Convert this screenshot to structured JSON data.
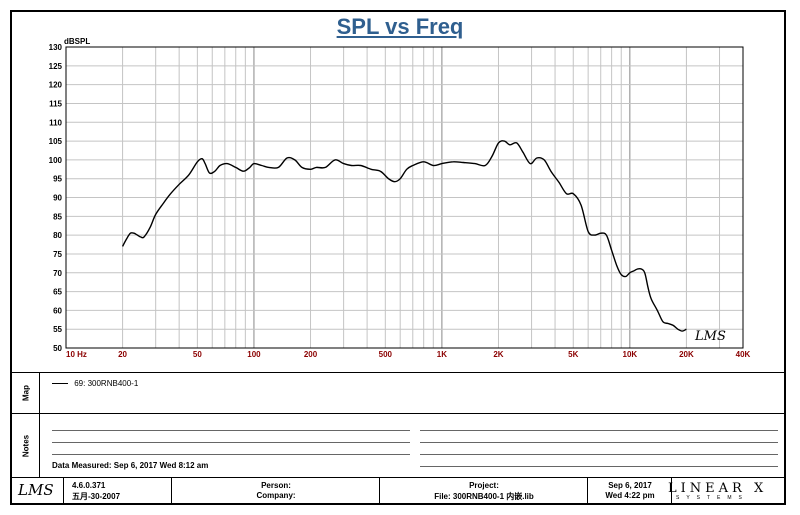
{
  "title": "SPL vs Freq",
  "chart_data": {
    "type": "line",
    "title": "SPL vs Freq",
    "ylabel": "dBSPL",
    "xlabel": "",
    "x_scale": "log",
    "xlim": [
      10,
      40000
    ],
    "ylim": [
      50,
      130
    ],
    "grid": true,
    "y_ticks": [
      "50",
      "55",
      "60",
      "65",
      "70",
      "75",
      "80",
      "85",
      "90",
      "95",
      "100",
      "105",
      "110",
      "115",
      "120",
      "125",
      "130"
    ],
    "x_ticks": [
      {
        "value": 10,
        "label": "10  Hz"
      },
      {
        "value": 20,
        "label": "20"
      },
      {
        "value": 50,
        "label": "50"
      },
      {
        "value": 100,
        "label": "100"
      },
      {
        "value": 200,
        "label": "200"
      },
      {
        "value": 500,
        "label": "500"
      },
      {
        "value": 1000,
        "label": "1K"
      },
      {
        "value": 2000,
        "label": "2K"
      },
      {
        "value": 5000,
        "label": "5K"
      },
      {
        "value": 10000,
        "label": "10K"
      },
      {
        "value": 20000,
        "label": "20K"
      },
      {
        "value": 40000,
        "label": "40K"
      }
    ],
    "series": [
      {
        "name": "69: 300RNB400-1",
        "x": [
          20,
          21,
          22,
          23,
          24,
          25,
          26,
          28,
          30,
          33,
          36,
          40,
          45,
          50,
          53,
          55,
          58,
          62,
          66,
          72,
          80,
          88,
          95,
          100,
          110,
          120,
          135,
          150,
          165,
          180,
          200,
          215,
          240,
          270,
          300,
          330,
          370,
          420,
          470,
          520,
          560,
          600,
          650,
          700,
          800,
          900,
          1000,
          1150,
          1300,
          1500,
          1700,
          1850,
          2000,
          2150,
          2300,
          2500,
          2700,
          2950,
          3200,
          3500,
          3800,
          4200,
          4600,
          5000,
          5500,
          6000,
          6500,
          7000,
          7500,
          8000,
          8500,
          9000,
          9500,
          10000,
          10500,
          11000,
          11500,
          12000,
          12500,
          13000,
          14000,
          15000,
          16000,
          17000,
          18000,
          19000,
          20000
        ],
        "y": [
          77,
          79,
          80.5,
          80.5,
          80,
          79.5,
          79.5,
          82,
          85.5,
          88.5,
          91,
          93.5,
          96,
          99.5,
          100.3,
          99,
          96.5,
          97,
          98.5,
          99,
          98,
          97,
          98,
          99,
          98.5,
          98,
          98,
          100.5,
          100,
          98,
          97.5,
          98,
          98,
          100,
          99,
          98.5,
          98.5,
          97.5,
          97,
          95,
          94.2,
          95,
          97.5,
          98.5,
          99.5,
          98.5,
          99,
          99.5,
          99.3,
          99,
          98.5,
          101,
          104.5,
          105,
          104,
          104.5,
          102,
          99,
          100.5,
          100,
          97,
          94,
          91,
          91,
          88,
          81,
          80,
          80.5,
          80,
          76,
          72,
          69.5,
          69,
          70,
          70.5,
          71,
          71,
          70,
          66,
          63,
          60,
          57,
          56.5,
          56,
          55,
          54.5,
          55
        ]
      }
    ]
  },
  "watermark_text": "LMS",
  "map_panel": {
    "label": "Map",
    "legend_entry": "69: 300RNB400-1"
  },
  "notes_panel": {
    "label": "Notes",
    "data_measured": "Data Measured: Sep  6, 2017  Wed  8:12 am"
  },
  "footer": {
    "logo": "LMS",
    "version": "4.6.0.371",
    "version_date": "五月-30-2007",
    "person_label": "Person:",
    "company_label": "Company:",
    "project_label": "Project:",
    "file_label": "File: 300RNB400-1  内嵌.lib",
    "date": "Sep  6, 2017",
    "time": "Wed  4:22 pm",
    "brand": "LINEAR X",
    "brand_sub": "SYSTEMS"
  }
}
